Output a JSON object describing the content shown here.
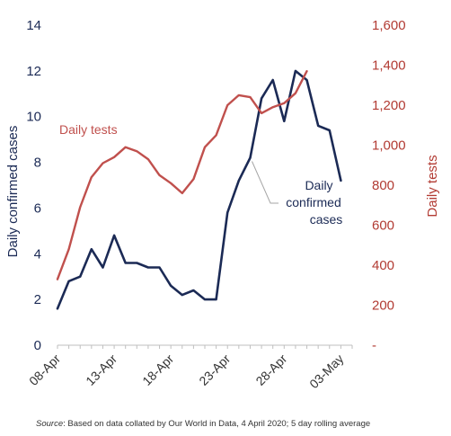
{
  "source": {
    "prefix": "Source",
    "text": ":  Based on data collated by Our World in Data, 4 April 2020; 5 day rolling average"
  },
  "chart_data": {
    "type": "line",
    "title": "",
    "ylabel_left": "Daily confirmed cases",
    "ylabel_right": "Daily tests",
    "ylim_left": [
      0,
      14
    ],
    "ylim_right": [
      0,
      1600
    ],
    "yticks_left": [
      "0",
      "2",
      "4",
      "6",
      "8",
      "10",
      "12",
      "14"
    ],
    "yticks_right": [
      "-",
      "200",
      "400",
      "600",
      "800",
      "1,000",
      "1,200",
      "1,400",
      "1,600"
    ],
    "xtick_labels": [
      "08-Apr",
      "13-Apr",
      "18-Apr",
      "23-Apr",
      "28-Apr",
      "03-May"
    ],
    "x": [
      "2020-04-08",
      "2020-04-09",
      "2020-04-10",
      "2020-04-11",
      "2020-04-12",
      "2020-04-13",
      "2020-04-14",
      "2020-04-15",
      "2020-04-16",
      "2020-04-17",
      "2020-04-18",
      "2020-04-19",
      "2020-04-20",
      "2020-04-21",
      "2020-04-22",
      "2020-04-23",
      "2020-04-24",
      "2020-04-25",
      "2020-04-26",
      "2020-04-27",
      "2020-04-28",
      "2020-04-29",
      "2020-04-30",
      "2020-05-01",
      "2020-05-02",
      "2020-05-03",
      "2020-05-04"
    ],
    "series": [
      {
        "name": "Daily confirmed cases",
        "axis": "left",
        "color": "#1b2a55",
        "label_lines": [
          "Daily",
          "confirmed",
          "cases"
        ],
        "values": [
          1.6,
          2.8,
          3.0,
          4.2,
          3.4,
          4.8,
          3.6,
          3.6,
          3.4,
          3.4,
          2.6,
          2.2,
          2.4,
          2.0,
          2.0,
          5.8,
          7.2,
          8.2,
          10.8,
          11.6,
          9.8,
          12.0,
          11.6,
          9.6,
          9.4,
          7.2,
          null
        ]
      },
      {
        "name": "Daily tests",
        "axis": "right",
        "color": "#c0504d",
        "label_lines": [
          "Daily tests"
        ],
        "values": [
          330,
          480,
          690,
          840,
          910,
          940,
          990,
          970,
          930,
          850,
          810,
          760,
          830,
          990,
          1050,
          1200,
          1250,
          1240,
          1160,
          1190,
          1210,
          1260,
          1370,
          null,
          null,
          null,
          null
        ]
      }
    ],
    "grid": false,
    "legend": "none"
  }
}
